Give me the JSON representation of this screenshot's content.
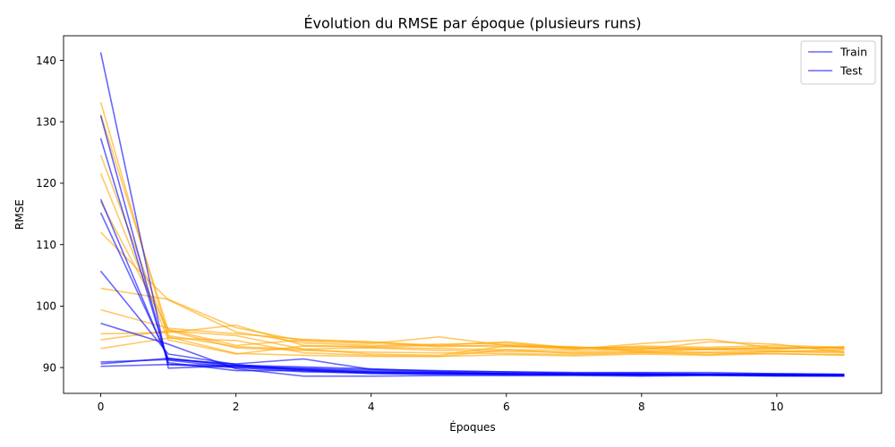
{
  "chart_data": {
    "type": "line",
    "title": "Évolution du RMSE par époque (plusieurs runs)",
    "xlabel": "Époques",
    "ylabel": "RMSE",
    "xlim": [
      -0.55,
      11.55
    ],
    "ylim": [
      85.8,
      144.0
    ],
    "x_ticks": [
      0,
      2,
      4,
      6,
      8,
      10
    ],
    "y_ticks": [
      90,
      100,
      110,
      120,
      130,
      140
    ],
    "grid": false,
    "legend": {
      "placement": "top-right",
      "entries": [
        {
          "label": "Train",
          "color": "#0000ff"
        },
        {
          "label": "Test",
          "color": "#0000ff"
        }
      ]
    },
    "colors": {
      "train": "#0000ff",
      "test": "#ffa500"
    },
    "x": [
      0,
      1,
      2,
      3,
      4,
      5,
      6,
      7,
      8,
      9,
      10,
      11
    ],
    "train_runs": [
      [
        141.3,
        89.9,
        90.3,
        89.5,
        89.0,
        88.9,
        88.8,
        88.8,
        88.7,
        88.8,
        88.7,
        88.6
      ],
      [
        131.0,
        90.5,
        90.0,
        89.7,
        89.2,
        89.0,
        89.0,
        88.9,
        88.9,
        88.8,
        88.7,
        88.7
      ],
      [
        127.3,
        90.8,
        89.5,
        89.5,
        89.2,
        89.1,
        89.0,
        88.9,
        88.8,
        88.9,
        88.8,
        88.7
      ],
      [
        117.4,
        91.2,
        90.0,
        89.3,
        89.1,
        89.0,
        88.9,
        88.9,
        88.8,
        88.8,
        88.7,
        88.7
      ],
      [
        115.2,
        91.5,
        90.2,
        89.8,
        89.4,
        89.2,
        89.0,
        88.9,
        88.9,
        88.8,
        88.8,
        88.7
      ],
      [
        105.7,
        92.2,
        90.5,
        89.6,
        89.3,
        89.1,
        89.0,
        88.9,
        88.9,
        88.8,
        88.8,
        88.8
      ],
      [
        97.2,
        93.8,
        89.8,
        88.6,
        88.6,
        88.7,
        88.7,
        88.7,
        88.6,
        88.7,
        88.6,
        88.6
      ],
      [
        90.9,
        91.3,
        90.6,
        91.4,
        89.7,
        89.5,
        89.3,
        89.2,
        89.2,
        89.2,
        89.0,
        88.9
      ],
      [
        90.6,
        91.5,
        90.4,
        90.1,
        89.8,
        89.4,
        89.3,
        89.1,
        89.1,
        89.0,
        89.0,
        88.9
      ],
      [
        90.2,
        90.5,
        90.3,
        89.9,
        89.6,
        89.3,
        89.1,
        89.0,
        89.0,
        88.9,
        88.9,
        88.8
      ]
    ],
    "test_runs": [
      [
        133.2,
        95.0,
        92.3,
        92.0,
        91.8,
        91.8,
        92.1,
        91.9,
        92.2,
        92.0,
        92.3,
        92.0
      ],
      [
        131.2,
        96.0,
        93.2,
        92.8,
        92.5,
        92.4,
        92.3,
        92.1,
        92.4,
        92.4,
        92.2,
        92.1
      ],
      [
        124.6,
        95.2,
        93.4,
        93.0,
        93.2,
        92.8,
        92.6,
        92.5,
        92.7,
        92.5,
        92.6,
        92.4
      ],
      [
        121.6,
        94.5,
        92.2,
        93.5,
        93.3,
        93.1,
        92.9,
        92.8,
        93.0,
        92.9,
        92.7,
        92.6
      ],
      [
        117.0,
        96.2,
        93.6,
        94.5,
        94.2,
        93.6,
        93.4,
        93.1,
        93.3,
        93.1,
        93.2,
        93.1
      ],
      [
        112.0,
        101.0,
        95.8,
        94.0,
        93.6,
        93.8,
        94.0,
        93.1,
        93.5,
        93.3,
        93.6,
        93.3
      ],
      [
        102.9,
        101.1,
        96.5,
        94.3,
        93.9,
        95.0,
        93.6,
        93.0,
        93.9,
        94.6,
        93.1,
        93.3
      ],
      [
        99.4,
        96.4,
        95.5,
        94.6,
        94.1,
        93.4,
        93.7,
        93.3,
        93.2,
        93.0,
        93.3,
        93.2
      ],
      [
        95.5,
        95.7,
        96.9,
        93.6,
        93.4,
        93.6,
        94.2,
        93.2,
        92.9,
        94.2,
        93.8,
        92.5
      ],
      [
        94.5,
        96.0,
        95.2,
        93.0,
        92.2,
        92.0,
        93.5,
        93.4,
        92.6,
        93.0,
        93.0,
        93.4
      ],
      [
        93.1,
        94.8,
        94.4,
        92.4,
        92.0,
        91.8,
        92.9,
        92.3,
        92.5,
        92.1,
        92.6,
        92.9
      ]
    ]
  }
}
